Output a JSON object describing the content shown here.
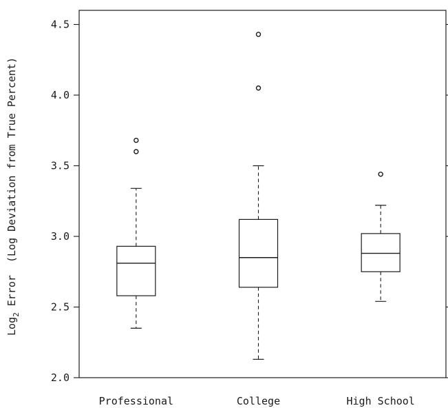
{
  "chart_data": {
    "type": "box",
    "ylabel_main": "Log",
    "ylabel_sub": "2",
    "ylabel_rest": " Error  (Log Deviation from True Percent)",
    "ylim": [
      2.0,
      4.6
    ],
    "yticks": [
      2.0,
      2.5,
      3.0,
      3.5,
      4.0,
      4.5
    ],
    "ytick_labels": [
      "2.0",
      "2.5",
      "3.0",
      "3.5",
      "4.0",
      "4.5"
    ],
    "grid": false,
    "categories": [
      "Professional",
      "College",
      "High School"
    ],
    "boxes": [
      {
        "category": "Professional",
        "whisker_low": 2.35,
        "q1": 2.58,
        "median": 2.81,
        "q3": 2.93,
        "whisker_high": 3.34,
        "outliers": [
          3.6,
          3.68
        ]
      },
      {
        "category": "College",
        "whisker_low": 2.13,
        "q1": 2.64,
        "median": 2.85,
        "q3": 3.12,
        "whisker_high": 3.5,
        "outliers": [
          4.05,
          4.43
        ]
      },
      {
        "category": "High School",
        "whisker_low": 2.54,
        "q1": 2.75,
        "median": 2.88,
        "q3": 3.02,
        "whisker_high": 3.22,
        "outliers": [
          3.44
        ]
      }
    ]
  }
}
